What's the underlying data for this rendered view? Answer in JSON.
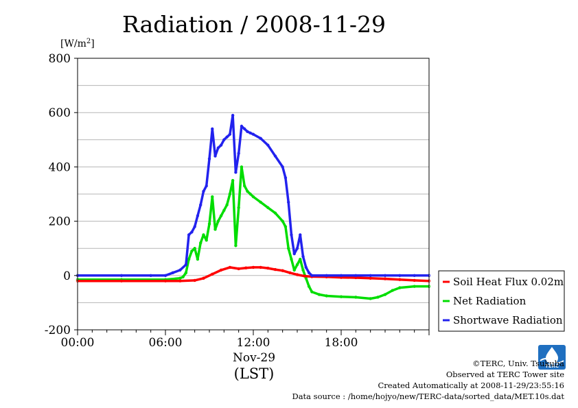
{
  "chart_data": {
    "type": "line",
    "title": "Radiation / 2008-11-29",
    "ylabel_unit": "[W/m",
    "ylabel_unit_sup": "2",
    "ylabel_unit_end": "]",
    "xlabel": "(LST)",
    "x_date_label": "Nov-29",
    "xlim": [
      0,
      24
    ],
    "ylim": [
      -200,
      800
    ],
    "y_ticks": [
      -200,
      0,
      200,
      400,
      600,
      800
    ],
    "x_ticks": [
      0,
      6,
      12,
      18
    ],
    "x_tick_labels": [
      "00:00",
      "06:00",
      "12:00",
      "18:00"
    ],
    "grid": true,
    "legend_position": "right",
    "series": [
      {
        "name": "Soil Heat Flux 0.02m",
        "color": "#ff0000",
        "points": [
          [
            0,
            -20
          ],
          [
            3,
            -20
          ],
          [
            6,
            -20
          ],
          [
            7,
            -20
          ],
          [
            8,
            -18
          ],
          [
            8.6,
            -10
          ],
          [
            9.2,
            5
          ],
          [
            9.8,
            20
          ],
          [
            10.4,
            30
          ],
          [
            11,
            25
          ],
          [
            11.5,
            28
          ],
          [
            12,
            30
          ],
          [
            12.5,
            30
          ],
          [
            13,
            27
          ],
          [
            13.5,
            22
          ],
          [
            14,
            18
          ],
          [
            14.5,
            10
          ],
          [
            15,
            3
          ],
          [
            15.5,
            -2
          ],
          [
            16,
            -4
          ],
          [
            17,
            -5
          ],
          [
            18,
            -7
          ],
          [
            19,
            -8
          ],
          [
            20,
            -10
          ],
          [
            21,
            -12
          ],
          [
            22,
            -15
          ],
          [
            23,
            -18
          ],
          [
            24,
            -20
          ]
        ]
      },
      {
        "name": "Net Radiation",
        "color": "#00dd00",
        "points": [
          [
            0,
            -15
          ],
          [
            3,
            -15
          ],
          [
            6,
            -15
          ],
          [
            7,
            -10
          ],
          [
            7.2,
            -5
          ],
          [
            7.4,
            10
          ],
          [
            7.6,
            60
          ],
          [
            7.8,
            90
          ],
          [
            8,
            100
          ],
          [
            8.2,
            60
          ],
          [
            8.4,
            120
          ],
          [
            8.6,
            150
          ],
          [
            8.8,
            130
          ],
          [
            9,
            190
          ],
          [
            9.2,
            290
          ],
          [
            9.4,
            170
          ],
          [
            9.6,
            200
          ],
          [
            9.8,
            220
          ],
          [
            10,
            240
          ],
          [
            10.2,
            260
          ],
          [
            10.4,
            300
          ],
          [
            10.6,
            350
          ],
          [
            10.8,
            110
          ],
          [
            11,
            250
          ],
          [
            11.2,
            400
          ],
          [
            11.4,
            330
          ],
          [
            11.6,
            310
          ],
          [
            11.8,
            300
          ],
          [
            12,
            290
          ],
          [
            12.5,
            270
          ],
          [
            13,
            250
          ],
          [
            13.5,
            230
          ],
          [
            14,
            200
          ],
          [
            14.2,
            180
          ],
          [
            14.4,
            100
          ],
          [
            14.6,
            60
          ],
          [
            14.8,
            20
          ],
          [
            15,
            40
          ],
          [
            15.2,
            60
          ],
          [
            15.4,
            20
          ],
          [
            15.6,
            -10
          ],
          [
            15.8,
            -40
          ],
          [
            16,
            -60
          ],
          [
            16.5,
            -70
          ],
          [
            17,
            -75
          ],
          [
            18,
            -78
          ],
          [
            19,
            -80
          ],
          [
            20,
            -85
          ],
          [
            20.5,
            -80
          ],
          [
            21,
            -70
          ],
          [
            21.5,
            -55
          ],
          [
            22,
            -45
          ],
          [
            23,
            -40
          ],
          [
            24,
            -40
          ]
        ]
      },
      {
        "name": "Shortwave Radiation",
        "color": "#2222ee",
        "points": [
          [
            0,
            0
          ],
          [
            3,
            0
          ],
          [
            5,
            0
          ],
          [
            6,
            0
          ],
          [
            6.5,
            10
          ],
          [
            7,
            20
          ],
          [
            7.4,
            40
          ],
          [
            7.6,
            150
          ],
          [
            7.8,
            160
          ],
          [
            8,
            180
          ],
          [
            8.2,
            220
          ],
          [
            8.4,
            260
          ],
          [
            8.6,
            310
          ],
          [
            8.8,
            330
          ],
          [
            9,
            430
          ],
          [
            9.2,
            540
          ],
          [
            9.4,
            440
          ],
          [
            9.6,
            470
          ],
          [
            9.8,
            480
          ],
          [
            10,
            500
          ],
          [
            10.2,
            510
          ],
          [
            10.4,
            520
          ],
          [
            10.6,
            590
          ],
          [
            10.8,
            380
          ],
          [
            11,
            450
          ],
          [
            11.2,
            550
          ],
          [
            11.4,
            540
          ],
          [
            11.6,
            530
          ],
          [
            11.8,
            525
          ],
          [
            12,
            520
          ],
          [
            12.5,
            505
          ],
          [
            13,
            480
          ],
          [
            13.5,
            440
          ],
          [
            14,
            400
          ],
          [
            14.2,
            360
          ],
          [
            14.4,
            270
          ],
          [
            14.6,
            150
          ],
          [
            14.8,
            80
          ],
          [
            15,
            100
          ],
          [
            15.2,
            150
          ],
          [
            15.4,
            70
          ],
          [
            15.6,
            30
          ],
          [
            15.8,
            10
          ],
          [
            16,
            0
          ],
          [
            17,
            0
          ],
          [
            18,
            0
          ],
          [
            19,
            0
          ],
          [
            20,
            0
          ],
          [
            21,
            0
          ],
          [
            22,
            0
          ],
          [
            23,
            0
          ],
          [
            24,
            0
          ]
        ]
      }
    ]
  },
  "credits": {
    "copyright": "©TERC, Univ. Tsukuba",
    "observed": "Observed at TERC Tower site",
    "created": "Created Automatically at 2008-11-29/23:55:16",
    "source": "Data source : /home/hojyo/new/TERC-data/sorted_data/MET.10s.dat",
    "logo_text": "TERC"
  }
}
